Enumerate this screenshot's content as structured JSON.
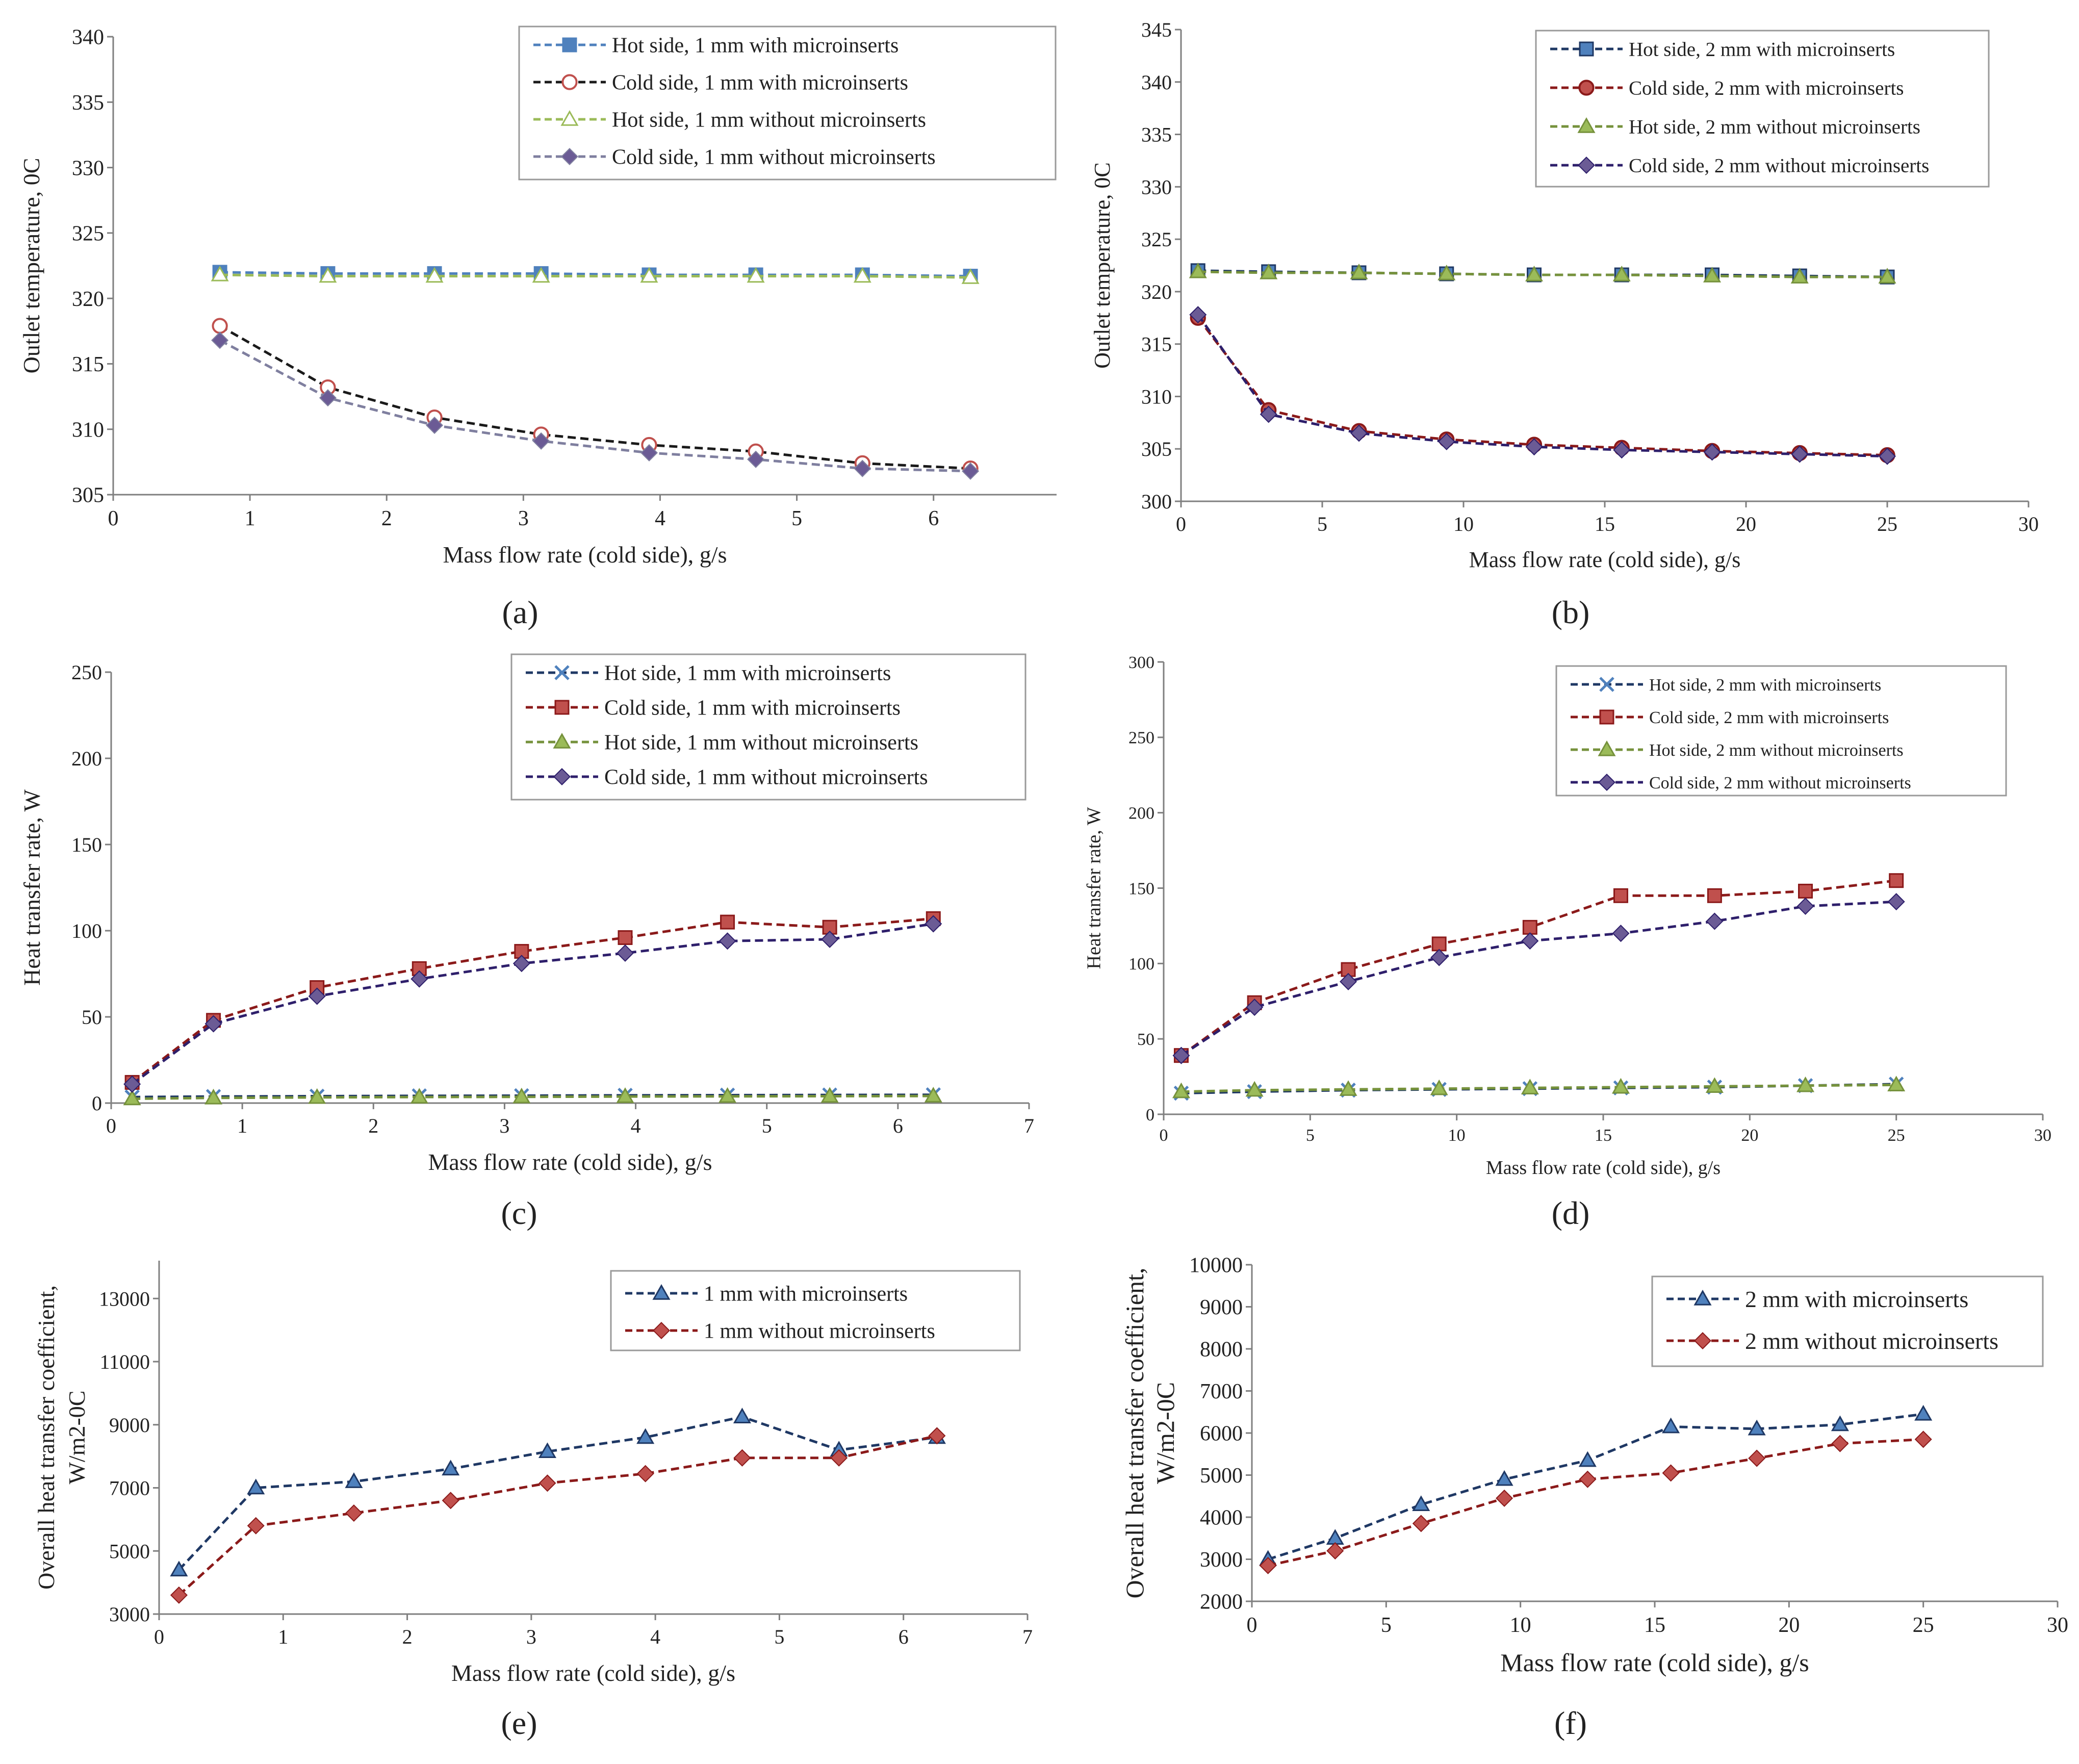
{
  "figure": {
    "captions": [
      "(a)",
      "(b)",
      "(c)",
      "(d)",
      "(e)",
      "(f)"
    ]
  },
  "colors": {
    "navy": "#1f3864",
    "steel": "#4f81bd",
    "darkred": "#8b1a1a",
    "red": "#c0504d",
    "olive": "#76923c",
    "green": "#9bbb59",
    "purple": "#5a4a8a",
    "purple_marker": "#6b5b95",
    "black": "#1a1a1a",
    "axis": "#7f7f7f"
  },
  "chart_data": [
    {
      "id": "a",
      "type": "line",
      "caption": "(a)",
      "xlabel": "Mass flow rate (cold side), g/s",
      "ylabel": "Outlet temperature, 0C",
      "xlim": [
        0,
        6.9
      ],
      "ylim": [
        305,
        340
      ],
      "xticks": [
        0,
        1,
        2,
        3,
        4,
        5,
        6
      ],
      "yticks": [
        305,
        310,
        315,
        320,
        325,
        330,
        335,
        340
      ],
      "legend_position": "top-right",
      "series": [
        {
          "name": "Hot side, 1 mm with microinserts",
          "color": "#4f81bd",
          "marker": "square",
          "fill": "#4f81bd",
          "x": [
            0.78,
            1.57,
            2.35,
            3.13,
            3.92,
            4.7,
            5.48,
            6.27
          ],
          "y": [
            322.0,
            321.9,
            321.9,
            321.9,
            321.8,
            321.8,
            321.8,
            321.7
          ]
        },
        {
          "name": "Cold side, 1 mm with microinserts",
          "color": "#1a1a1a",
          "marker": "circle",
          "fill": "#ffffff",
          "stroke": "#c0504d",
          "x": [
            0.78,
            1.57,
            2.35,
            3.13,
            3.92,
            4.7,
            5.48,
            6.27
          ],
          "y": [
            317.9,
            313.2,
            310.9,
            309.6,
            308.8,
            308.3,
            307.4,
            307.0
          ]
        },
        {
          "name": "Hot side, 1 mm without microinserts",
          "color": "#9bbb59",
          "marker": "triangle",
          "fill": "#ffffff",
          "stroke": "#9bbb59",
          "x": [
            0.78,
            1.57,
            2.35,
            3.13,
            3.92,
            4.7,
            5.48,
            6.27
          ],
          "y": [
            321.8,
            321.7,
            321.7,
            321.7,
            321.7,
            321.7,
            321.7,
            321.6
          ]
        },
        {
          "name": "Cold side, 1 mm without microinserts",
          "color": "#7f7f9f",
          "marker": "diamond",
          "fill": "#6b5b95",
          "x": [
            0.78,
            1.57,
            2.35,
            3.13,
            3.92,
            4.7,
            5.48,
            6.27
          ],
          "y": [
            316.8,
            312.4,
            310.3,
            309.1,
            308.2,
            307.7,
            307.0,
            306.8
          ]
        }
      ]
    },
    {
      "id": "b",
      "type": "line",
      "caption": "(b)",
      "xlabel": "Mass flow rate (cold side), g/s",
      "ylabel": "Outlet temperature, 0C",
      "xlim": [
        0,
        30
      ],
      "ylim": [
        300,
        345
      ],
      "xticks": [
        0,
        5,
        10,
        15,
        20,
        25,
        30
      ],
      "yticks": [
        300,
        305,
        310,
        315,
        320,
        325,
        330,
        335,
        340,
        345
      ],
      "legend_position": "top-right",
      "series": [
        {
          "name": "Hot side, 2 mm with microinserts",
          "color": "#1f3864",
          "marker": "square",
          "fill": "#4f81bd",
          "x": [
            0.6,
            3.1,
            6.3,
            9.4,
            12.5,
            15.6,
            18.8,
            21.9,
            25.0
          ],
          "y": [
            322.0,
            321.9,
            321.8,
            321.7,
            321.6,
            321.6,
            321.6,
            321.5,
            321.4
          ]
        },
        {
          "name": "Cold side, 2 mm with microinserts",
          "color": "#8b1a1a",
          "marker": "circle",
          "fill": "#c0504d",
          "x": [
            0.6,
            3.1,
            6.3,
            9.4,
            12.5,
            15.6,
            18.8,
            21.9,
            25.0
          ],
          "y": [
            317.5,
            308.7,
            306.7,
            305.9,
            305.4,
            305.1,
            304.8,
            304.6,
            304.4
          ]
        },
        {
          "name": "Hot side, 2 mm without microinserts",
          "color": "#76923c",
          "marker": "triangle",
          "fill": "#9bbb59",
          "x": [
            0.6,
            3.1,
            6.3,
            9.4,
            12.5,
            15.6,
            18.8,
            21.9,
            25.0
          ],
          "y": [
            321.9,
            321.8,
            321.8,
            321.7,
            321.6,
            321.6,
            321.5,
            321.4,
            321.4
          ]
        },
        {
          "name": "Cold side, 2 mm without microinserts",
          "color": "#2e1f6b",
          "marker": "diamond",
          "fill": "#6b5b95",
          "x": [
            0.6,
            3.1,
            6.3,
            9.4,
            12.5,
            15.6,
            18.8,
            21.9,
            25.0
          ],
          "y": [
            317.8,
            308.3,
            306.5,
            305.7,
            305.2,
            304.9,
            304.7,
            304.5,
            304.3
          ]
        }
      ]
    },
    {
      "id": "c",
      "type": "line",
      "caption": "(c)",
      "xlabel": "Mass flow rate (cold side), g/s",
      "ylabel": "Heat transfer rate, W",
      "xlim": [
        0,
        7
      ],
      "ylim": [
        0,
        250
      ],
      "xticks": [
        0,
        1,
        2,
        3,
        4,
        5,
        6,
        7
      ],
      "yticks": [
        0,
        50,
        100,
        150,
        200,
        250
      ],
      "legend_position": "top-right",
      "series": [
        {
          "name": "Hot side, 1 mm with microinserts",
          "color": "#1f3864",
          "marker": "x",
          "fill": "#4f81bd",
          "x": [
            0.16,
            0.78,
            1.57,
            2.35,
            3.13,
            3.92,
            4.7,
            5.48,
            6.27
          ],
          "y": [
            3.5,
            3.8,
            4.0,
            4.2,
            4.3,
            4.5,
            4.6,
            4.7,
            4.8
          ]
        },
        {
          "name": "Cold side, 1 mm with microinserts",
          "color": "#8b1a1a",
          "marker": "square",
          "fill": "#c0504d",
          "x": [
            0.16,
            0.78,
            1.57,
            2.35,
            3.13,
            3.92,
            4.7,
            5.48,
            6.27
          ],
          "y": [
            12,
            48,
            67,
            78,
            88,
            96,
            105,
            102,
            107
          ]
        },
        {
          "name": "Hot side, 1 mm without microinserts",
          "color": "#76923c",
          "marker": "triangle",
          "fill": "#9bbb59",
          "x": [
            0.16,
            0.78,
            1.57,
            2.35,
            3.13,
            3.92,
            4.7,
            5.48,
            6.27
          ],
          "y": [
            2.5,
            3.0,
            3.3,
            3.5,
            3.6,
            3.8,
            3.9,
            4.0,
            4.1
          ]
        },
        {
          "name": "Cold side, 1 mm without microinserts",
          "color": "#2e1f6b",
          "marker": "diamond",
          "fill": "#6b5b95",
          "x": [
            0.16,
            0.78,
            1.57,
            2.35,
            3.13,
            3.92,
            4.7,
            5.48,
            6.27
          ],
          "y": [
            11,
            46,
            62,
            72,
            81,
            87,
            94,
            95,
            104
          ]
        }
      ]
    },
    {
      "id": "d",
      "type": "line",
      "caption": "(d)",
      "xlabel": "Mass flow rate (cold side), g/s",
      "ylabel": "Heat transfer rate, W",
      "xlim": [
        0,
        30
      ],
      "ylim": [
        0,
        300
      ],
      "xticks": [
        0,
        5,
        10,
        15,
        20,
        25,
        30
      ],
      "yticks": [
        0,
        50,
        100,
        150,
        200,
        250,
        300
      ],
      "legend_position": "top-right",
      "series": [
        {
          "name": "Hot side, 2 mm with microinserts",
          "color": "#1f3864",
          "marker": "x",
          "fill": "#4f81bd",
          "x": [
            0.6,
            3.1,
            6.3,
            9.4,
            12.5,
            15.6,
            18.8,
            21.9,
            25.0
          ],
          "y": [
            14,
            15,
            16,
            16.5,
            17,
            17.5,
            18,
            19,
            20
          ]
        },
        {
          "name": "Cold side, 2 mm with microinserts",
          "color": "#8b1a1a",
          "marker": "square",
          "fill": "#c0504d",
          "x": [
            0.6,
            3.1,
            6.3,
            9.4,
            12.5,
            15.6,
            18.8,
            21.9,
            25.0
          ],
          "y": [
            39,
            74,
            96,
            113,
            124,
            145,
            145,
            148,
            155
          ]
        },
        {
          "name": "Hot side, 2 mm without microinserts",
          "color": "#76923c",
          "marker": "triangle",
          "fill": "#9bbb59",
          "x": [
            0.6,
            3.1,
            6.3,
            9.4,
            12.5,
            15.6,
            18.8,
            21.9,
            25.0
          ],
          "y": [
            15,
            16,
            16.5,
            17,
            17.5,
            18,
            18.5,
            19,
            19.5
          ]
        },
        {
          "name": "Cold side, 2 mm without microinserts",
          "color": "#2e1f6b",
          "marker": "diamond",
          "fill": "#6b5b95",
          "x": [
            0.6,
            3.1,
            6.3,
            9.4,
            12.5,
            15.6,
            18.8,
            21.9,
            25.0
          ],
          "y": [
            39,
            71,
            88,
            104,
            115,
            120,
            128,
            138,
            141
          ]
        }
      ]
    },
    {
      "id": "e",
      "type": "line",
      "caption": "(e)",
      "xlabel": "Mass flow rate (cold side), g/s",
      "ylabel_lines": [
        "Overall heat transfer coefficient,",
        "W/m2-0C"
      ],
      "xlim": [
        0,
        7
      ],
      "ylim": [
        3000,
        14200
      ],
      "xticks": [
        0,
        1,
        2,
        3,
        4,
        5,
        6,
        7
      ],
      "yticks": [
        3000,
        5000,
        7000,
        9000,
        11000,
        13000
      ],
      "legend_position": "top-right",
      "series": [
        {
          "name": "1 mm with microinserts",
          "color": "#1f3864",
          "marker": "triangle",
          "fill": "#4f81bd",
          "x": [
            0.16,
            0.78,
            1.57,
            2.35,
            3.13,
            3.92,
            4.7,
            5.48,
            6.27
          ],
          "y": [
            4400,
            7000,
            7200,
            7600,
            8150,
            8600,
            9250,
            8200,
            8600
          ]
        },
        {
          "name": "1 mm without microinserts",
          "color": "#8b1a1a",
          "marker": "diamond",
          "fill": "#c0504d",
          "x": [
            0.16,
            0.78,
            1.57,
            2.35,
            3.13,
            3.92,
            4.7,
            5.48,
            6.27
          ],
          "y": [
            3600,
            5800,
            6200,
            6600,
            7150,
            7450,
            7950,
            7950,
            8650
          ]
        }
      ]
    },
    {
      "id": "f",
      "type": "line",
      "caption": "(f)",
      "xlabel": "Mass flow rate (cold side), g/s",
      "ylabel_lines": [
        "Overall heat transfer coefficient,",
        "W/m2-0C"
      ],
      "xlim": [
        0,
        30
      ],
      "ylim": [
        2000,
        10000
      ],
      "xticks": [
        0,
        5,
        10,
        15,
        20,
        25,
        30
      ],
      "yticks": [
        2000,
        3000,
        4000,
        5000,
        6000,
        7000,
        8000,
        9000,
        10000
      ],
      "legend_position": "top-right",
      "series": [
        {
          "name": "2 mm with microinserts",
          "color": "#1f3864",
          "marker": "triangle",
          "fill": "#4f81bd",
          "x": [
            0.6,
            3.1,
            6.3,
            9.4,
            12.5,
            15.6,
            18.8,
            21.9,
            25.0
          ],
          "y": [
            3000,
            3500,
            4300,
            4900,
            5350,
            6150,
            6100,
            6200,
            6450
          ]
        },
        {
          "name": "2 mm without microinserts",
          "color": "#8b1a1a",
          "marker": "diamond",
          "fill": "#c0504d",
          "x": [
            0.6,
            3.1,
            6.3,
            9.4,
            12.5,
            15.6,
            18.8,
            21.9,
            25.0
          ],
          "y": [
            2850,
            3200,
            3850,
            4450,
            4900,
            5050,
            5400,
            5750,
            5850
          ]
        }
      ]
    }
  ]
}
